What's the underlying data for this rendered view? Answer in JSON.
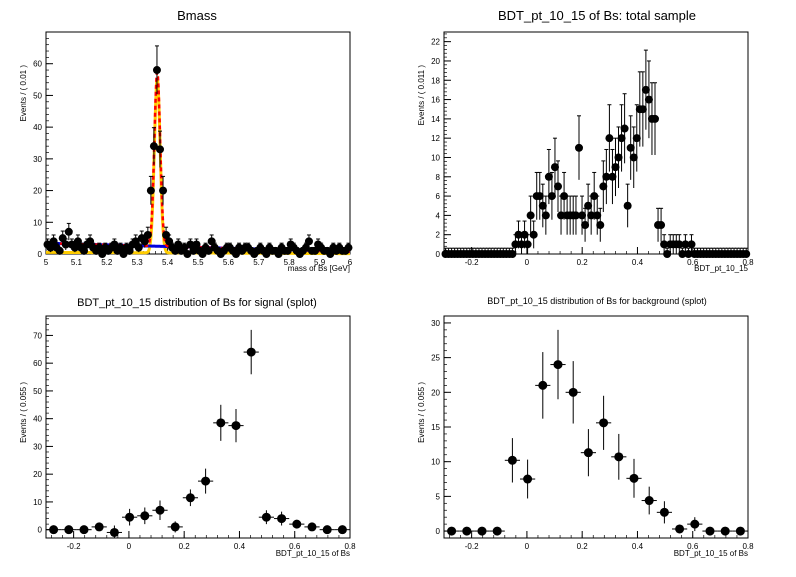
{
  "chart_data": [
    {
      "type": "scatter",
      "title": "Bmass",
      "xlabel": "mass of Bs [GeV]",
      "ylabel": "Events / ( 0.01 )",
      "xlim": [
        5,
        6
      ],
      "ylim": [
        0,
        70
      ],
      "xticks": [
        5,
        5.1,
        5.2,
        5.3,
        5.4,
        5.5,
        5.6,
        5.7,
        5.8,
        5.9,
        6
      ],
      "yticks": [
        0,
        10,
        20,
        30,
        40,
        50,
        60
      ],
      "xbin": 0.01,
      "colors": {
        "points": "#000000",
        "total": "#ff0000",
        "signal": "#ffcc00",
        "background": "#0000dd"
      },
      "series": [
        {
          "values": [
            [
              5.005,
              3
            ],
            [
              5.015,
              2
            ],
            [
              5.025,
              4
            ],
            [
              5.035,
              2
            ],
            [
              5.045,
              1
            ],
            [
              5.055,
              5
            ],
            [
              5.065,
              3
            ],
            [
              5.075,
              7
            ],
            [
              5.085,
              3
            ],
            [
              5.095,
              2
            ],
            [
              5.105,
              4
            ],
            [
              5.115,
              2
            ],
            [
              5.125,
              1
            ],
            [
              5.135,
              3
            ],
            [
              5.145,
              4
            ],
            [
              5.155,
              2
            ],
            [
              5.165,
              1
            ],
            [
              5.175,
              2
            ],
            [
              5.185,
              0
            ],
            [
              5.195,
              2
            ],
            [
              5.205,
              1
            ],
            [
              5.215,
              2
            ],
            [
              5.225,
              3
            ],
            [
              5.235,
              1
            ],
            [
              5.245,
              2
            ],
            [
              5.255,
              0
            ],
            [
              5.265,
              2
            ],
            [
              5.275,
              1
            ],
            [
              5.285,
              3
            ],
            [
              5.295,
              4
            ],
            [
              5.305,
              2
            ],
            [
              5.315,
              5
            ],
            [
              5.325,
              4
            ],
            [
              5.335,
              6
            ],
            [
              5.345,
              20
            ],
            [
              5.355,
              34
            ],
            [
              5.365,
              58
            ],
            [
              5.375,
              33
            ],
            [
              5.385,
              20
            ],
            [
              5.395,
              6
            ],
            [
              5.405,
              4
            ],
            [
              5.415,
              2
            ],
            [
              5.425,
              1
            ],
            [
              5.435,
              3
            ],
            [
              5.445,
              1
            ],
            [
              5.455,
              2
            ],
            [
              5.465,
              0
            ],
            [
              5.475,
              3
            ],
            [
              5.485,
              1
            ],
            [
              5.495,
              3
            ],
            [
              5.505,
              1
            ],
            [
              5.515,
              0
            ],
            [
              5.525,
              2
            ],
            [
              5.535,
              1
            ],
            [
              5.545,
              4
            ],
            [
              5.555,
              2
            ],
            [
              5.565,
              1
            ],
            [
              5.575,
              0
            ],
            [
              5.585,
              1
            ],
            [
              5.595,
              2
            ],
            [
              5.605,
              2
            ],
            [
              5.615,
              1
            ],
            [
              5.625,
              0
            ],
            [
              5.635,
              2
            ],
            [
              5.645,
              1
            ],
            [
              5.655,
              2
            ],
            [
              5.665,
              2
            ],
            [
              5.675,
              1
            ],
            [
              5.685,
              0
            ],
            [
              5.695,
              1
            ],
            [
              5.705,
              2
            ],
            [
              5.715,
              1
            ],
            [
              5.725,
              0
            ],
            [
              5.735,
              2
            ],
            [
              5.745,
              1
            ],
            [
              5.755,
              1
            ],
            [
              5.765,
              0
            ],
            [
              5.775,
              2
            ],
            [
              5.785,
              1
            ],
            [
              5.795,
              1
            ],
            [
              5.805,
              3
            ],
            [
              5.815,
              2
            ],
            [
              5.825,
              1
            ],
            [
              5.835,
              0
            ],
            [
              5.845,
              1
            ],
            [
              5.855,
              2
            ],
            [
              5.865,
              4
            ],
            [
              5.875,
              1
            ],
            [
              5.885,
              1
            ],
            [
              5.895,
              3
            ],
            [
              5.905,
              2
            ],
            [
              5.915,
              1
            ],
            [
              5.925,
              1
            ],
            [
              5.935,
              0
            ],
            [
              5.945,
              2
            ],
            [
              5.955,
              1
            ],
            [
              5.965,
              2
            ],
            [
              5.975,
              1
            ],
            [
              5.985,
              1
            ],
            [
              5.995,
              2
            ]
          ]
        }
      ],
      "fit": {
        "signal_mean": 5.366,
        "signal_sigma": 0.0095,
        "signal_peak": 55,
        "bkg_at_5": 3.4,
        "bkg_slope": 2.6
      }
    },
    {
      "type": "scatter",
      "title": "BDT_pt_10_15 of Bs: total sample",
      "xlabel": "BDT_pt_10_15",
      "ylabel": "Events / ( 0.011 )",
      "xlim": [
        -0.3,
        0.8
      ],
      "ylim": [
        0,
        23
      ],
      "xticks": [
        -0.2,
        0,
        0.2,
        0.4,
        0.6,
        0.8
      ],
      "yticks": [
        0,
        2,
        4,
        6,
        8,
        10,
        12,
        14,
        16,
        18,
        20,
        22
      ],
      "xbin": 0.011,
      "series": [
        {
          "values": [
            [
              -0.2945,
              0
            ],
            [
              -0.2835,
              0
            ],
            [
              -0.2725,
              0
            ],
            [
              -0.2615,
              0
            ],
            [
              -0.2505,
              0
            ],
            [
              -0.2395,
              0
            ],
            [
              -0.2285,
              0
            ],
            [
              -0.2175,
              0
            ],
            [
              -0.2065,
              0
            ],
            [
              -0.1955,
              0
            ],
            [
              -0.1845,
              0
            ],
            [
              -0.1735,
              0
            ],
            [
              -0.1625,
              0
            ],
            [
              -0.1515,
              0
            ],
            [
              -0.1405,
              0
            ],
            [
              -0.1295,
              0
            ],
            [
              -0.1185,
              0
            ],
            [
              -0.1075,
              0
            ],
            [
              -0.0965,
              0
            ],
            [
              -0.0855,
              0
            ],
            [
              -0.0745,
              0
            ],
            [
              -0.0635,
              0
            ],
            [
              -0.0525,
              0
            ],
            [
              -0.0415,
              1
            ],
            [
              -0.0305,
              2
            ],
            [
              -0.0195,
              1
            ],
            [
              -0.0085,
              2
            ],
            [
              0.0025,
              1
            ],
            [
              0.0135,
              4
            ],
            [
              0.0245,
              2
            ],
            [
              0.0355,
              6
            ],
            [
              0.0465,
              6
            ],
            [
              0.0575,
              5
            ],
            [
              0.0685,
              4
            ],
            [
              0.0795,
              8
            ],
            [
              0.0905,
              6
            ],
            [
              0.1015,
              9
            ],
            [
              0.1125,
              7
            ],
            [
              0.1235,
              4
            ],
            [
              0.1345,
              6
            ],
            [
              0.1455,
              4
            ],
            [
              0.1565,
              4
            ],
            [
              0.1675,
              4
            ],
            [
              0.1775,
              4
            ],
            [
              0.1885,
              11
            ],
            [
              0.1995,
              4
            ],
            [
              0.2105,
              3
            ],
            [
              0.2215,
              5
            ],
            [
              0.2325,
              4
            ],
            [
              0.2435,
              6
            ],
            [
              0.2545,
              4
            ],
            [
              0.2655,
              3
            ],
            [
              0.2765,
              7
            ],
            [
              0.2875,
              8
            ],
            [
              0.2985,
              12
            ],
            [
              0.3095,
              8
            ],
            [
              0.3205,
              9
            ],
            [
              0.3315,
              10
            ],
            [
              0.3425,
              12
            ],
            [
              0.3535,
              13
            ],
            [
              0.3645,
              5
            ],
            [
              0.3755,
              11
            ],
            [
              0.3865,
              10
            ],
            [
              0.3975,
              12
            ],
            [
              0.4085,
              15
            ],
            [
              0.4195,
              15
            ],
            [
              0.4305,
              17
            ],
            [
              0.4415,
              16
            ],
            [
              0.4525,
              14
            ],
            [
              0.4635,
              14
            ],
            [
              0.4745,
              3
            ],
            [
              0.4855,
              3
            ],
            [
              0.4965,
              1
            ],
            [
              0.5075,
              0
            ],
            [
              0.5185,
              1
            ],
            [
              0.5295,
              1
            ],
            [
              0.5405,
              1
            ],
            [
              0.5515,
              1
            ],
            [
              0.5625,
              0
            ],
            [
              0.5735,
              1
            ],
            [
              0.5845,
              0
            ],
            [
              0.5955,
              1
            ],
            [
              0.6065,
              0
            ],
            [
              0.6175,
              0
            ],
            [
              0.6285,
              0
            ],
            [
              0.6395,
              0
            ],
            [
              0.6505,
              0
            ],
            [
              0.6615,
              0
            ],
            [
              0.6725,
              0
            ],
            [
              0.6835,
              0
            ],
            [
              0.6945,
              0
            ],
            [
              0.7055,
              0
            ],
            [
              0.7165,
              0
            ],
            [
              0.7275,
              0
            ],
            [
              0.7385,
              0
            ],
            [
              0.7495,
              0
            ],
            [
              0.7605,
              0
            ],
            [
              0.7715,
              0
            ],
            [
              0.7825,
              0
            ],
            [
              0.7935,
              0
            ]
          ]
        }
      ]
    },
    {
      "type": "scatter",
      "title": "BDT_pt_10_15 distribution of Bs for signal (splot)",
      "xlabel": "BDT_pt_10_15 of Bs",
      "ylabel": "Events / ( 0.055 )",
      "xlim": [
        -0.3,
        0.8
      ],
      "ylim": [
        -3,
        77
      ],
      "xticks": [
        -0.2,
        0,
        0.2,
        0.4,
        0.6,
        0.8
      ],
      "yticks": [
        0,
        10,
        20,
        30,
        40,
        50,
        60,
        70
      ],
      "xbin": 0.055,
      "series": [
        {
          "values": [
            [
              -0.2725,
              0
            ],
            [
              -0.2175,
              0
            ],
            [
              -0.1625,
              0
            ],
            [
              -0.1075,
              1
            ],
            [
              -0.0525,
              -1
            ],
            [
              0.0025,
              4.5
            ],
            [
              0.0575,
              5
            ],
            [
              0.1125,
              7
            ],
            [
              0.1675,
              1
            ],
            [
              0.2225,
              11.5
            ],
            [
              0.2775,
              17.5
            ],
            [
              0.3325,
              38.5
            ],
            [
              0.3875,
              37.5
            ],
            [
              0.4425,
              64
            ],
            [
              0.4975,
              4.5
            ],
            [
              0.5525,
              4
            ],
            [
              0.6075,
              2
            ],
            [
              0.6625,
              1
            ],
            [
              0.7175,
              0
            ],
            [
              0.7725,
              0
            ]
          ],
          "errors": [
            0.5,
            0.5,
            0.5,
            1,
            2.5,
            3,
            3,
            3.5,
            2,
            3,
            4.5,
            6.5,
            6,
            8,
            2.5,
            2.5,
            1.5,
            1,
            0.5,
            0.5
          ]
        }
      ]
    },
    {
      "type": "scatter",
      "title": "BDT_pt_10_15 distribution of Bs for background (splot)",
      "xlabel": "BDT_pt_10_15 of Bs",
      "ylabel": "Events / ( 0.055 )",
      "xlim": [
        -0.3,
        0.8
      ],
      "ylim": [
        -1,
        31
      ],
      "xticks": [
        -0.2,
        0,
        0.2,
        0.4,
        0.6,
        0.8
      ],
      "yticks": [
        0,
        5,
        10,
        15,
        20,
        25,
        30
      ],
      "xbin": 0.055,
      "series": [
        {
          "values": [
            [
              -0.2725,
              0
            ],
            [
              -0.2175,
              0
            ],
            [
              -0.1625,
              0
            ],
            [
              -0.1075,
              0
            ],
            [
              -0.0525,
              10.2
            ],
            [
              0.0025,
              7.5
            ],
            [
              0.0575,
              21
            ],
            [
              0.1125,
              24
            ],
            [
              0.1675,
              20
            ],
            [
              0.2225,
              11.3
            ],
            [
              0.2775,
              15.6
            ],
            [
              0.3325,
              10.7
            ],
            [
              0.3875,
              7.6
            ],
            [
              0.4425,
              4.4
            ],
            [
              0.4975,
              2.7
            ],
            [
              0.5525,
              0.3
            ],
            [
              0.6075,
              1
            ],
            [
              0.6625,
              0
            ],
            [
              0.7175,
              0
            ],
            [
              0.7725,
              0
            ]
          ],
          "errors": [
            0.3,
            0.3,
            0.3,
            0.3,
            3.2,
            2.8,
            4.8,
            5,
            4.5,
            3.4,
            3.9,
            3.3,
            2.8,
            2,
            1.6,
            0.6,
            1,
            0.3,
            0.3,
            0.3
          ]
        }
      ]
    }
  ]
}
